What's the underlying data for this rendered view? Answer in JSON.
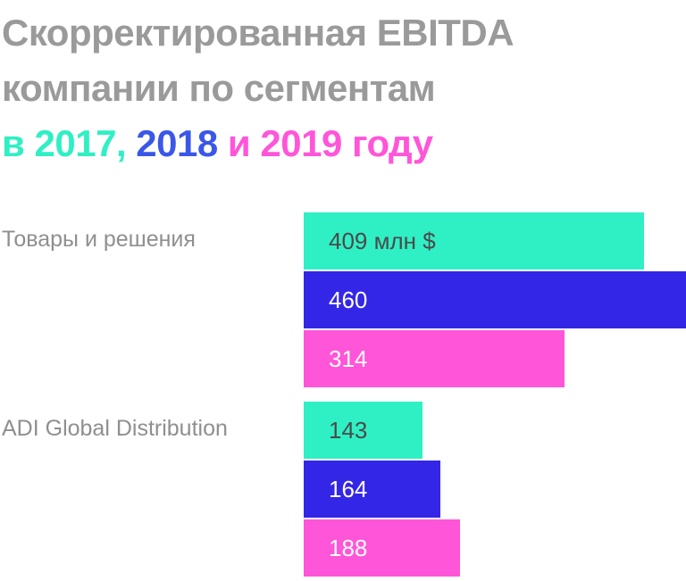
{
  "title": {
    "line1": "Скорректированная EBITDA",
    "line2": "компании по сегментам",
    "line3": {
      "prefix": "в",
      "year1": "2017",
      "sep": ",",
      "year2": "2018",
      "connector": "и",
      "year3": "2019",
      "suffix": "году"
    }
  },
  "colors": {
    "y2017": "#2ff0c4",
    "y2018": "#3426e6",
    "y2019": "#ff55d9",
    "title_gray": "#9a9a9a",
    "label_gray": "#8f8f8f",
    "year2018_text": "#3b57e8"
  },
  "chart_data": {
    "type": "bar",
    "orientation": "horizontal",
    "unit": "млн $",
    "categories": [
      "Товары и решения",
      "ADI Global Distribution"
    ],
    "series": [
      {
        "name": "2017",
        "values": [
          409,
          143
        ]
      },
      {
        "name": "2018",
        "values": [
          460,
          164
        ]
      },
      {
        "name": "2019",
        "values": [
          314,
          188
        ]
      }
    ],
    "data_labels": [
      [
        "409 млн $",
        "460",
        "314"
      ],
      [
        "143",
        "164",
        "188"
      ]
    ],
    "xlim": [
      0,
      460
    ]
  }
}
